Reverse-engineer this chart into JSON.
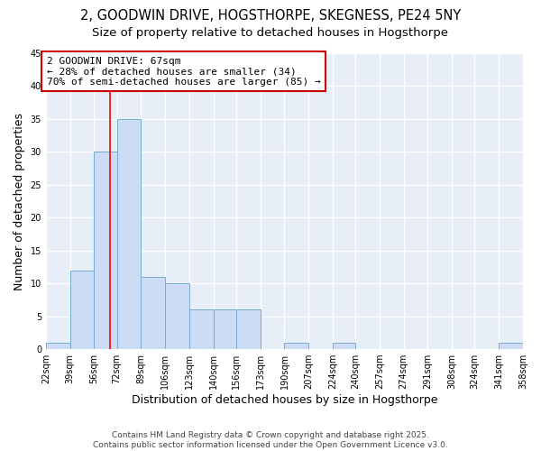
{
  "title_line1": "2, GOODWIN DRIVE, HOGSTHORPE, SKEGNESS, PE24 5NY",
  "title_line2": "Size of property relative to detached houses in Hogsthorpe",
  "xlabel": "Distribution of detached houses by size in Hogsthorpe",
  "ylabel": "Number of detached properties",
  "bin_edges": [
    22,
    39,
    56,
    72,
    89,
    106,
    123,
    140,
    156,
    173,
    190,
    207,
    224,
    240,
    257,
    274,
    291,
    308,
    324,
    341,
    358
  ],
  "bar_heights": [
    1,
    12,
    30,
    35,
    11,
    10,
    6,
    6,
    6,
    0,
    1,
    0,
    1,
    0,
    0,
    0,
    0,
    0,
    0,
    1
  ],
  "bar_color": "#ccdcf5",
  "bar_edgecolor": "#7aaad0",
  "red_line_x": 67,
  "annotation_text": "2 GOODWIN DRIVE: 67sqm\n← 28% of detached houses are smaller (34)\n70% of semi-detached houses are larger (85) →",
  "annotation_box_color": "#ffffff",
  "annotation_box_edgecolor": "#cc0000",
  "ylim": [
    0,
    45
  ],
  "yticks": [
    0,
    5,
    10,
    15,
    20,
    25,
    30,
    35,
    40,
    45
  ],
  "bg_color": "#ffffff",
  "plot_bg_color": "#e8eef8",
  "grid_color": "#ffffff",
  "footer_line1": "Contains HM Land Registry data © Crown copyright and database right 2025.",
  "footer_line2": "Contains public sector information licensed under the Open Government Licence v3.0.",
  "title_fontsize": 10.5,
  "subtitle_fontsize": 9.5,
  "axis_label_fontsize": 9,
  "tick_fontsize": 7,
  "annotation_fontsize": 8,
  "footer_fontsize": 6.5
}
